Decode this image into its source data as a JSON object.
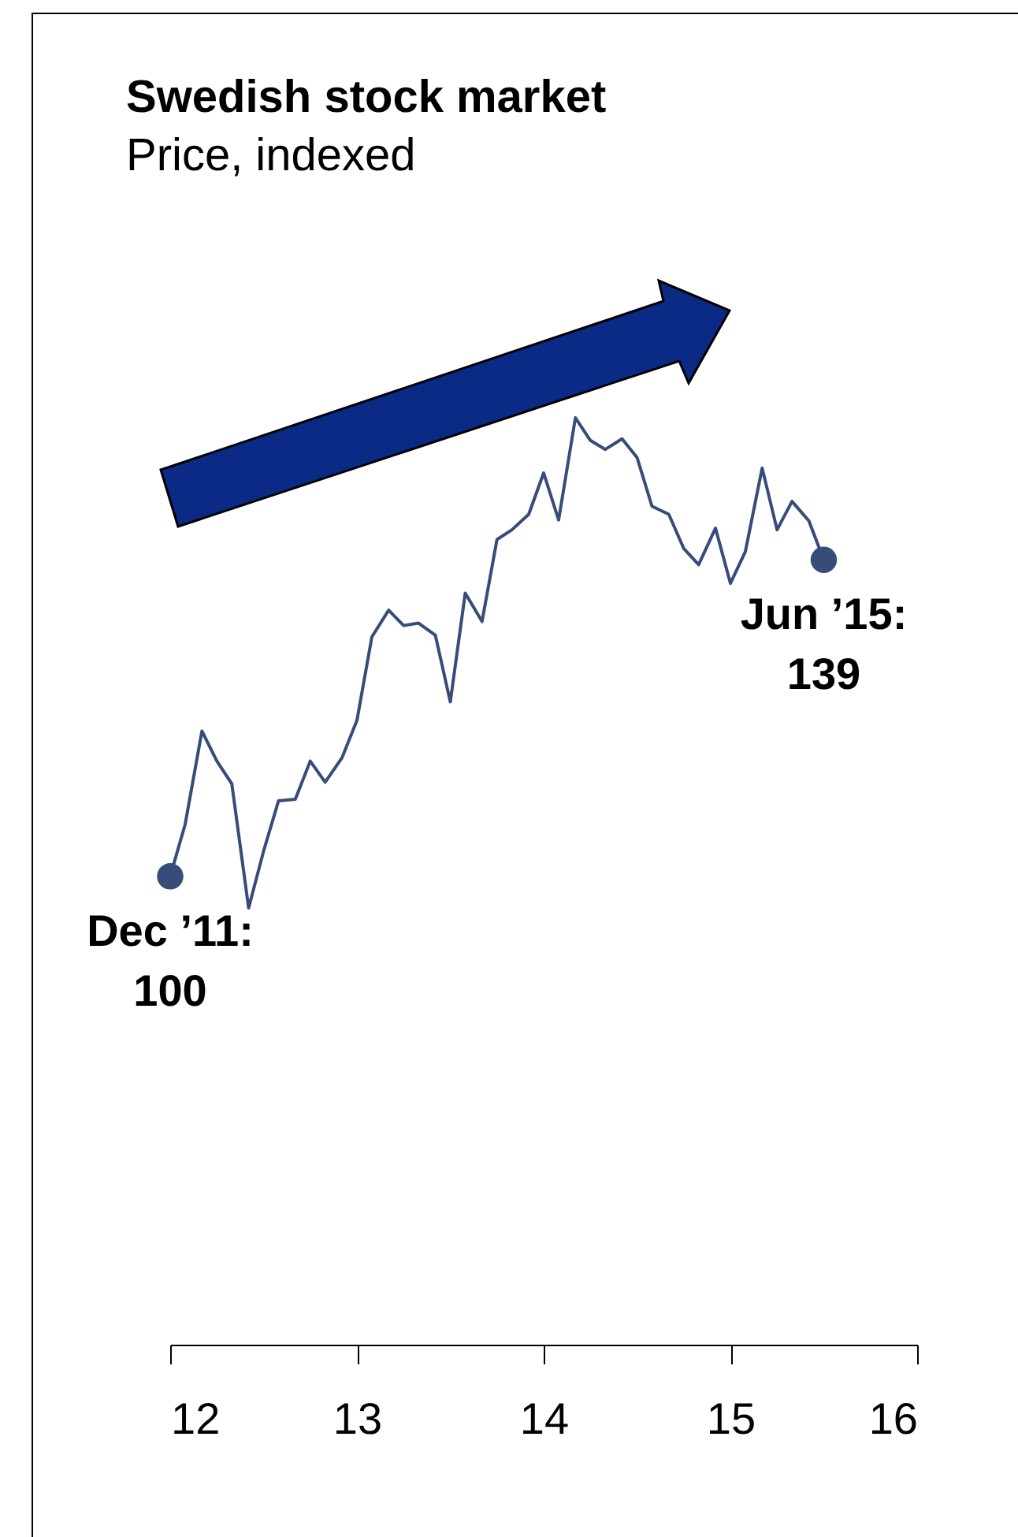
{
  "chart_data": {
    "type": "line",
    "title": "Swedish stock market",
    "subtitle": "Price, indexed",
    "xlim": [
      12,
      16
    ],
    "xticks": [
      12,
      13,
      14,
      15,
      16
    ],
    "grid": false,
    "marker": "none",
    "line_style": "solid",
    "series": [
      {
        "color": "#374c78",
        "x": [
          12,
          12.08,
          12.17,
          12.25,
          12.33,
          12.42,
          12.5,
          12.58,
          12.67,
          12.75,
          12.83,
          12.92,
          13,
          13.08,
          13.17,
          13.25,
          13.33,
          13.42,
          13.5,
          13.58,
          13.67,
          13.75,
          13.83,
          13.92,
          14,
          14.08,
          14.17,
          14.25,
          14.33,
          14.42,
          14.5,
          14.58,
          14.67,
          14.75,
          14.83,
          14.92,
          15,
          15.08,
          15.17,
          15.25,
          15.33,
          15.42,
          15.5
        ],
        "values": [
          100,
          106.4,
          117.9,
          114.2,
          111.4,
          96.1,
          103.1,
          109.3,
          109.5,
          114.2,
          111.6,
          114.6,
          119.2,
          129.5,
          132.8,
          130.9,
          131.2,
          129.7,
          121.5,
          134.9,
          131.4,
          141.5,
          142.7,
          144.6,
          149.7,
          143.9,
          156.5,
          153.7,
          152.6,
          153.9,
          151.6,
          145.6,
          144.6,
          140.4,
          138.4,
          142.9,
          136.1,
          140,
          150.3,
          142.7,
          146.2,
          143.8,
          139
        ],
        "value_labels": [
          "100",
          null,
          null,
          null,
          null,
          null,
          null,
          null,
          null,
          null,
          null,
          null,
          null,
          null,
          null,
          null,
          null,
          null,
          null,
          null,
          null,
          null,
          null,
          null,
          null,
          null,
          null,
          null,
          null,
          null,
          null,
          null,
          null,
          null,
          null,
          null,
          null,
          null,
          null,
          null,
          null,
          null,
          "139"
        ]
      }
    ],
    "annotations": [
      {
        "text": "Dec ’11:",
        "x": 12,
        "y": 100
      },
      {
        "text": "Jun ’15:",
        "x": 15.5,
        "y": 139
      }
    ]
  }
}
